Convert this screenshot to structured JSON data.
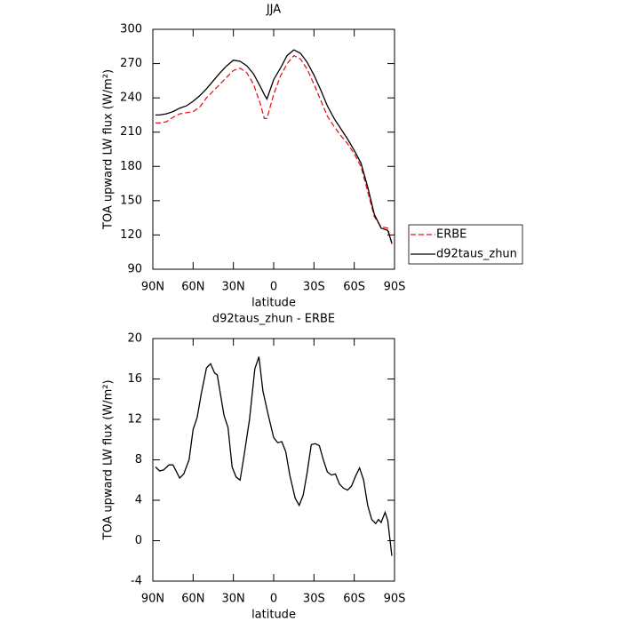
{
  "chart_data": [
    {
      "type": "line",
      "title": "JJA",
      "xlabel": "latitude",
      "ylabel": "TOA upward LW flux (W/m²)",
      "x": [
        88,
        85,
        80,
        75,
        70,
        65,
        60,
        55,
        50,
        45,
        40,
        35,
        30,
        25,
        20,
        15,
        10,
        7,
        5,
        0,
        -5,
        -10,
        -15,
        -20,
        -25,
        -30,
        -35,
        -40,
        -45,
        -50,
        -55,
        -60,
        -65,
        -70,
        -75,
        -80,
        -85,
        -88
      ],
      "series": [
        {
          "name": "ERBE",
          "color": "#e8141c",
          "linestyle": "dashed",
          "values": [
            218,
            218,
            219,
            223,
            226,
            227,
            228,
            232,
            240,
            246,
            252,
            258,
            264,
            266,
            262,
            252,
            235,
            222,
            222,
            243,
            259,
            270,
            277,
            274,
            265,
            252,
            238,
            224,
            215,
            207,
            200,
            191,
            180,
            158,
            136,
            127,
            126,
            112
          ]
        },
        {
          "name": "d92taus_zhun",
          "color": "#000000",
          "linestyle": "solid",
          "values": [
            225,
            225,
            226,
            228,
            231,
            233,
            237,
            242,
            248,
            255,
            262,
            268,
            273,
            272,
            268,
            261,
            250,
            243,
            239,
            256,
            266,
            277,
            282,
            279,
            271,
            260,
            247,
            233,
            222,
            213,
            204,
            194,
            183,
            162,
            138,
            126,
            124,
            113
          ]
        }
      ],
      "xlim": [
        90,
        -90
      ],
      "xticks": [
        {
          "value": 90,
          "label": "90N"
        },
        {
          "value": 60,
          "label": "60N"
        },
        {
          "value": 30,
          "label": "30N"
        },
        0,
        {
          "value": -30,
          "label": "30S"
        },
        {
          "value": -60,
          "label": "60S"
        },
        {
          "value": -90,
          "label": "90S"
        }
      ],
      "ylim": [
        90,
        300
      ],
      "yticks": [
        90,
        120,
        150,
        180,
        210,
        240,
        270,
        300
      ],
      "legend": "right"
    },
    {
      "type": "line",
      "title": "d92taus_zhun - ERBE",
      "xlabel": "latitude",
      "ylabel": "TOA upward LW flux (W/m²)",
      "x": [
        88,
        85,
        82,
        78,
        75,
        70,
        67,
        63,
        60,
        57,
        54,
        50,
        47,
        44,
        42,
        37,
        34,
        31,
        28,
        25,
        22,
        18,
        14,
        11,
        8,
        4,
        0,
        -3,
        -6,
        -9,
        -12,
        -16,
        -19,
        -22,
        -25,
        -28,
        -31,
        -34,
        -37,
        -40,
        -43,
        -46,
        -49,
        -52,
        -55,
        -58,
        -61,
        -64,
        -67,
        -70,
        -73,
        -76,
        -78,
        -80,
        -83,
        -85,
        -88
      ],
      "values": [
        7.3,
        6.9,
        7.0,
        7.5,
        7.5,
        6.2,
        6.6,
        8.0,
        11.0,
        12.2,
        14.5,
        17.1,
        17.5,
        16.6,
        16.4,
        12.4,
        11.2,
        7.3,
        6.3,
        6.0,
        8.5,
        12.0,
        17.0,
        18.2,
        14.8,
        12.4,
        10.2,
        9.7,
        9.8,
        8.8,
        6.5,
        4.2,
        3.5,
        4.5,
        6.8,
        9.5,
        9.6,
        9.4,
        8.0,
        6.8,
        6.5,
        6.6,
        5.6,
        5.2,
        5.0,
        5.4,
        6.4,
        7.2,
        6.0,
        3.5,
        2.1,
        1.7,
        2.1,
        1.8,
        2.8,
        2.0,
        -1.5
      ],
      "color": "#000000",
      "xlim": [
        90,
        -90
      ],
      "xticks": [
        {
          "value": 90,
          "label": "90N"
        },
        {
          "value": 60,
          "label": "60N"
        },
        {
          "value": 30,
          "label": "30N"
        },
        0,
        {
          "value": -30,
          "label": "30S"
        },
        {
          "value": -60,
          "label": "60S"
        },
        {
          "value": -90,
          "label": "90S"
        }
      ],
      "ylim": [
        -4,
        20
      ],
      "yticks": [
        -4,
        0,
        4,
        8,
        12,
        16,
        20
      ]
    }
  ]
}
